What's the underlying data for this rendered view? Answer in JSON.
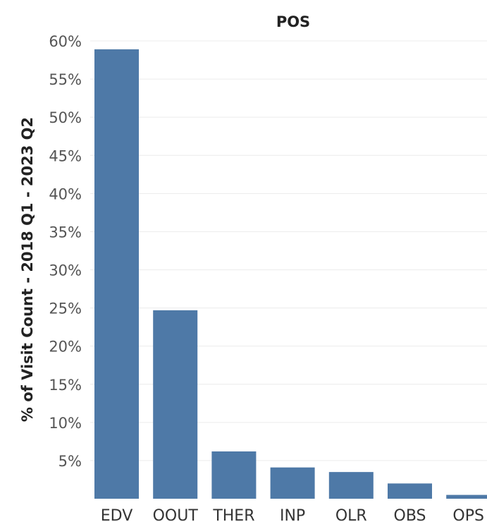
{
  "chart_data": {
    "type": "bar",
    "title": "POS",
    "ylabel": "% of Visit Count - 2018 Q1 - 2023 Q2",
    "xlabel": "",
    "categories": [
      "EDV",
      "OOUT",
      "THER",
      "INP",
      "OLR",
      "OBS",
      "OPS"
    ],
    "values": [
      58.9,
      24.7,
      6.2,
      4.1,
      3.5,
      2.0,
      0.5
    ],
    "ylim": [
      0,
      60
    ],
    "yticks": [
      5,
      10,
      15,
      20,
      25,
      30,
      35,
      40,
      45,
      50,
      55,
      60
    ],
    "ytick_labels": [
      "5%",
      "10%",
      "15%",
      "20%",
      "25%",
      "30%",
      "35%",
      "40%",
      "45%",
      "50%",
      "55%",
      "60%"
    ],
    "grid": true,
    "bar_color": "#4e79a7"
  }
}
